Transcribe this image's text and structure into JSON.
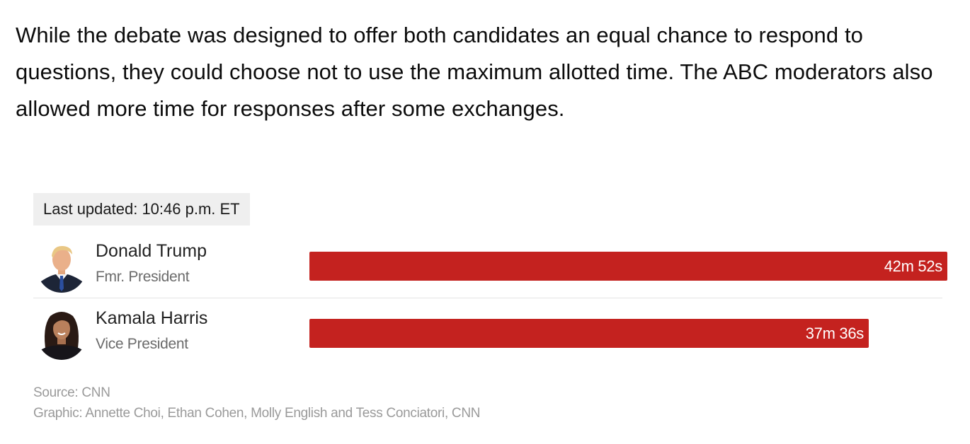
{
  "intro_text": "While the debate was designed to offer both candidates an equal chance to respond to questions, they could choose not to use the maximum allotted time. The ABC moderators also allowed more time for responses after some exchanges.",
  "last_updated": "Last updated: 10:46 p.m. ET",
  "colors": {
    "bar": "#c4221f",
    "update_badge_bg": "#efefef"
  },
  "chart_data": {
    "type": "bar",
    "orientation": "horizontal",
    "categories": [
      "Donald Trump",
      "Kamala Harris"
    ],
    "subtitles": [
      "Fmr. President",
      "Vice President"
    ],
    "values": [
      2572,
      2256
    ],
    "value_unit": "seconds",
    "value_labels": [
      "42m 52s",
      "37m 36s"
    ],
    "xlim": [
      0,
      2572
    ],
    "grid": false,
    "legend": "none"
  },
  "candidates": [
    {
      "name": "Donald Trump",
      "role": "Fmr. President",
      "time_label": "42m 52s",
      "avatar_icon": "donald-trump-portrait"
    },
    {
      "name": "Kamala Harris",
      "role": "Vice President",
      "time_label": "37m 36s",
      "avatar_icon": "kamala-harris-portrait"
    }
  ],
  "source": "Source: CNN",
  "credit": "Graphic: Annette Choi, Ethan Cohen, Molly English and Tess Conciatori, CNN"
}
